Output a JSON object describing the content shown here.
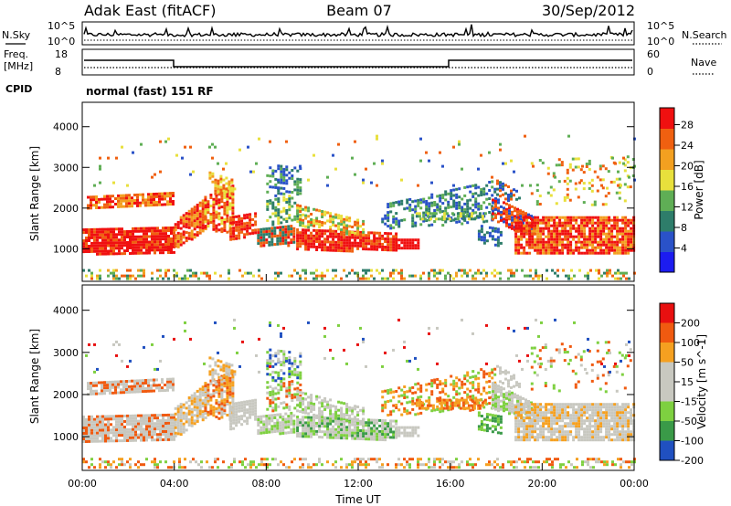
{
  "header": {
    "title_left": "Adak East (fitACF)",
    "title_center": "Beam 07",
    "title_right": "30/Sep/2012"
  },
  "top_panels": {
    "nsky_label": "N.Sky",
    "nsearch_label": "N.Search",
    "nsky_ticks": [
      "10^5",
      "10^0"
    ],
    "nsearch_ticks": [
      "10^5",
      "10^0"
    ],
    "freq_label_1": "Freq.",
    "freq_label_2": "[MHz]",
    "freq_ticks": [
      "18",
      "8"
    ],
    "nave_label": "Nave",
    "nave_ticks": [
      "60",
      "0"
    ],
    "cpid_label": "CPID",
    "cpid_text": "normal (fast) 151 RF"
  },
  "chart_data": [
    {
      "type": "heatmap",
      "name": "power",
      "ylabel": "Slant Range [km]",
      "xlabel": "",
      "ylim": [
        200,
        4600
      ],
      "yticks": [
        "1000",
        "2000",
        "3000",
        "4000"
      ],
      "xlim_hours": [
        0,
        24
      ],
      "colorbar_label": "Power [dB]",
      "colorbar_ticks": [
        "28",
        "24",
        "20",
        "16",
        "12",
        "8",
        "4"
      ],
      "colors": [
        "#1c1cf0",
        "#2a52c8",
        "#2e7d6a",
        "#5fae55",
        "#e8e03c",
        "#f3a020",
        "#f06010",
        "#f01010"
      ]
    },
    {
      "type": "heatmap",
      "name": "velocity",
      "ylabel": "Slant Range [km]",
      "xlabel": "Time UT",
      "ylim": [
        200,
        4600
      ],
      "yticks": [
        "1000",
        "2000",
        "3000",
        "4000"
      ],
      "xticks": [
        "00:00",
        "04:00",
        "08:00",
        "12:00",
        "16:00",
        "20:00",
        "00:00"
      ],
      "xlim_hours": [
        0,
        24
      ],
      "colorbar_label": "Velocity [m s^-1]",
      "colorbar_ticks": [
        "200",
        "100",
        "50",
        "15",
        "-15",
        "-50",
        "-100",
        "-200"
      ],
      "colors": [
        "#e81010",
        "#f05a10",
        "#f5a020",
        "#c8c8c0",
        "#c8c8c0",
        "#7ed040",
        "#3a9a48",
        "#2050c0"
      ]
    }
  ]
}
